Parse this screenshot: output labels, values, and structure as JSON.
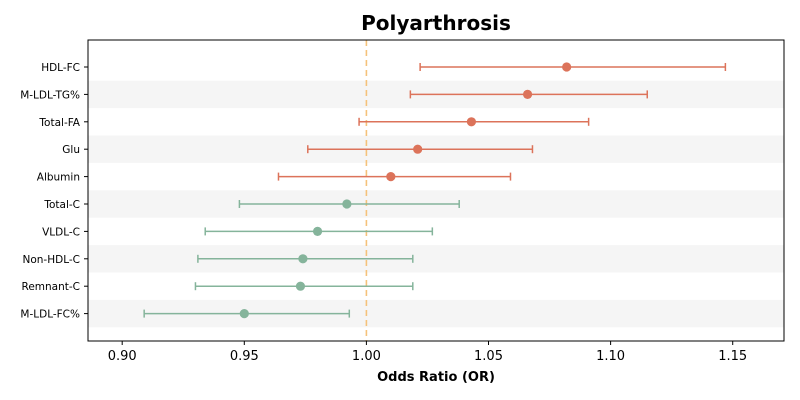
{
  "chart_data": {
    "type": "forest",
    "title": "Polyarthrosis",
    "xlabel": "Odds Ratio (OR)",
    "ylabel": "",
    "xlim": [
      0.886,
      1.171
    ],
    "xticks": [
      0.9,
      0.95,
      1.0,
      1.05,
      1.1,
      1.15
    ],
    "xtick_labels": [
      "0.90",
      "0.95",
      "1.00",
      "1.05",
      "1.10",
      "1.15"
    ],
    "reference_line": 1.0,
    "grid": false,
    "row_banding": true,
    "colors": {
      "positive": "#dc735a",
      "negative": "#85b49b",
      "reference": "#f5c27a",
      "band": "#f5f5f5"
    },
    "rows": [
      {
        "label": "HDL-FC",
        "or": 1.082,
        "lower": 1.022,
        "upper": 1.147,
        "group": "positive"
      },
      {
        "label": "M-LDL-TG%",
        "or": 1.066,
        "lower": 1.018,
        "upper": 1.115,
        "group": "positive"
      },
      {
        "label": "Total-FA",
        "or": 1.043,
        "lower": 0.997,
        "upper": 1.091,
        "group": "positive"
      },
      {
        "label": "Glu",
        "or": 1.021,
        "lower": 0.976,
        "upper": 1.068,
        "group": "positive"
      },
      {
        "label": "Albumin",
        "or": 1.01,
        "lower": 0.964,
        "upper": 1.059,
        "group": "positive"
      },
      {
        "label": "Total-C",
        "or": 0.992,
        "lower": 0.948,
        "upper": 1.038,
        "group": "negative"
      },
      {
        "label": "VLDL-C",
        "or": 0.98,
        "lower": 0.934,
        "upper": 1.027,
        "group": "negative"
      },
      {
        "label": "Non-HDL-C",
        "or": 0.974,
        "lower": 0.931,
        "upper": 1.019,
        "group": "negative"
      },
      {
        "label": "Remnant-C",
        "or": 0.973,
        "lower": 0.93,
        "upper": 1.019,
        "group": "negative"
      },
      {
        "label": "M-LDL-FC%",
        "or": 0.95,
        "lower": 0.909,
        "upper": 0.993,
        "group": "negative"
      }
    ]
  }
}
